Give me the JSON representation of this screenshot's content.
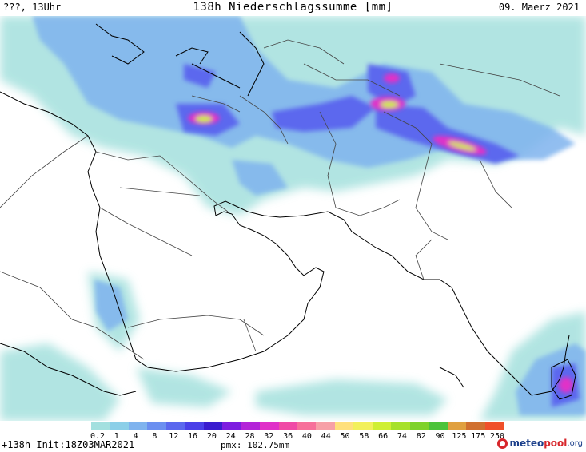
{
  "header": {
    "left": "???, 13Uhr",
    "center": "138h Niederschlagssumme [mm]",
    "right": "09. Maerz 2021"
  },
  "footer": {
    "left": "+138h Init:18Z03MAR2021",
    "pmx": "pmx: 102.75mm"
  },
  "logo": {
    "part1": "meteo",
    "part2": "pool",
    "part3": ".org"
  },
  "legend": {
    "labels": [
      "0.2",
      "1",
      "4",
      "8",
      "12",
      "16",
      "20",
      "24",
      "28",
      "32",
      "36",
      "40",
      "44",
      "50",
      "58",
      "66",
      "74",
      "82",
      "90",
      "125",
      "175",
      "250"
    ],
    "colors": [
      "#a3e0df",
      "#8ccfe8",
      "#7fb3ee",
      "#6b8ff0",
      "#5b68ee",
      "#4a40e8",
      "#3a1ccf",
      "#7d1de0",
      "#b324d8",
      "#e030c8",
      "#f04aa6",
      "#f7709a",
      "#f7a0a7",
      "#ffe07c",
      "#f2f05b",
      "#cfef33",
      "#a6e12a",
      "#7ed22b",
      "#4cc33a",
      "#e0a040",
      "#d07030",
      "#f0502a"
    ]
  },
  "colors": {
    "land": "#ffffff",
    "coast": "#000000",
    "border": "#444444"
  }
}
